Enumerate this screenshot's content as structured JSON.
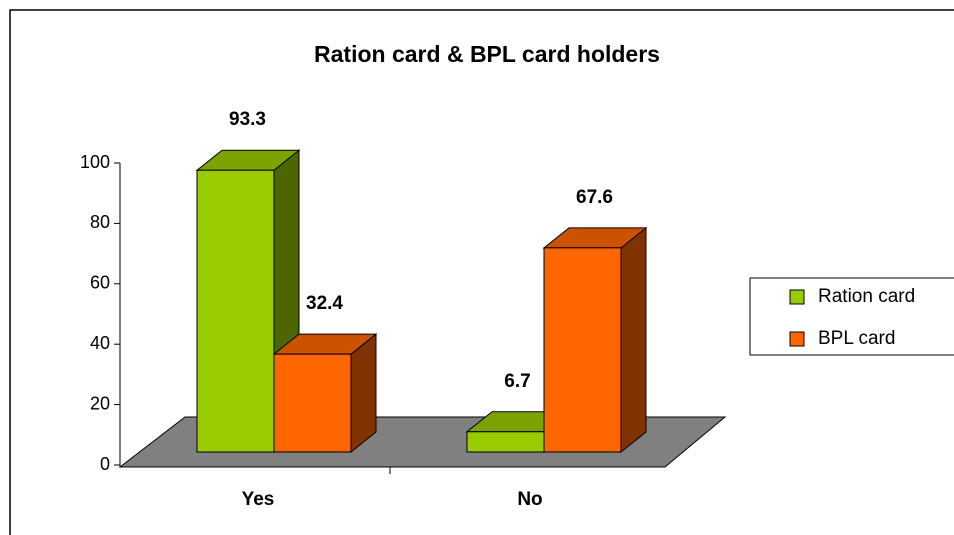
{
  "chart_data": {
    "type": "bar3d",
    "title": "Ration card & BPL card holders",
    "categories": [
      "Yes",
      "No"
    ],
    "series": [
      {
        "name": "Ration card",
        "color": "#99cc00",
        "values": [
          93.3,
          6.7
        ]
      },
      {
        "name": "BPL card",
        "color": "#ff6600",
        "values": [
          32.4,
          67.6
        ]
      }
    ],
    "ylim": [
      0,
      100
    ],
    "yticks": [
      0,
      20,
      40,
      60,
      80,
      100
    ],
    "legend": "right"
  }
}
